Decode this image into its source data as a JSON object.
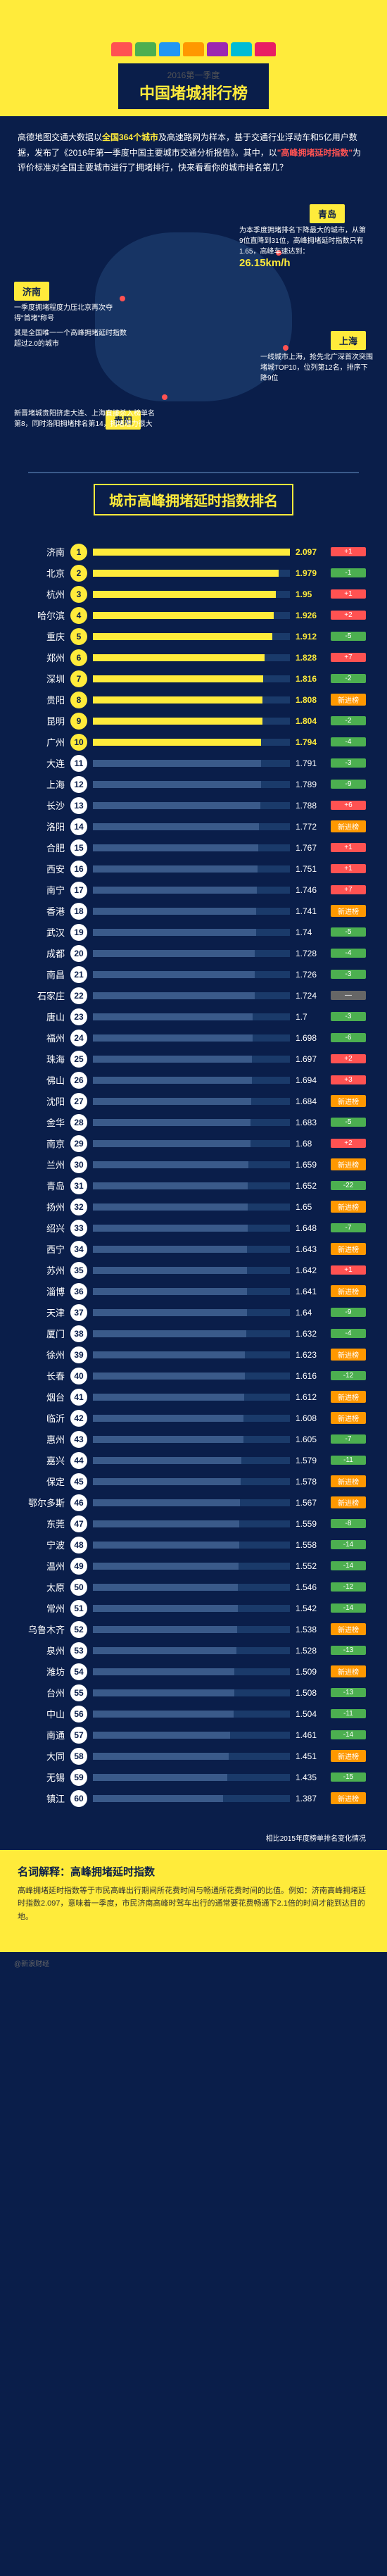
{
  "header": {
    "subtitle": "2016第一季度",
    "title": "中国堵城排行榜",
    "car_colors": [
      "#ff5252",
      "#4caf50",
      "#2196f3",
      "#ff9800",
      "#9c27b0",
      "#00bcd4",
      "#e91e63"
    ]
  },
  "intro": {
    "text_parts": [
      "高德地图交通大数据以",
      "全国364个城市",
      "及高速路网为样本，基于交通行业浮动车和5亿用户数据，发布了《2016年第一季度中国主要城市交通分析报告》。其中，以",
      "\"高峰拥堵延时指数\"",
      "为评价标准对全国主要城市进行了拥堵排行，快来看看你的城市排名第几？"
    ]
  },
  "map": {
    "qingdao": {
      "name": "青岛",
      "desc": "为本季度拥堵排名下降最大的城市，从第9位直降到31位，高峰拥堵延时指数只有1.65，高峰车速达到：",
      "speed": "26.15km/h"
    },
    "jinan": {
      "name": "济南",
      "desc1": "一季度拥堵程度力压北京再次夺得\"首堵\"称号",
      "desc2": "其是全国唯一一个高峰拥堵延时指数超过2.0的城市"
    },
    "shanghai": {
      "name": "上海",
      "desc": "一线城市上海，抢先北广深首次突围堵城TOP10，位列第12名，排序下降9位"
    },
    "guiyang": {
      "name": "贵阳",
      "desc": "新晋堵城贵阳挤走大连、上海直接杀入榜单名第8，同时洛阳拥堵排名第14，拥堵潜力很大"
    }
  },
  "ranking": {
    "title": "城市高峰拥堵延时指数排名",
    "max_value": 2.1,
    "items": [
      {
        "rank": 1,
        "city": "济南",
        "value": "2.097",
        "change": "+1",
        "type": "up"
      },
      {
        "rank": 2,
        "city": "北京",
        "value": "1.979",
        "change": "-1",
        "type": "down"
      },
      {
        "rank": 3,
        "city": "杭州",
        "value": "1.95",
        "change": "+1",
        "type": "up"
      },
      {
        "rank": 4,
        "city": "哈尔滨",
        "value": "1.926",
        "change": "+2",
        "type": "up"
      },
      {
        "rank": 5,
        "city": "重庆",
        "value": "1.912",
        "change": "-5",
        "type": "down"
      },
      {
        "rank": 6,
        "city": "郑州",
        "value": "1.828",
        "change": "+7",
        "type": "up"
      },
      {
        "rank": 7,
        "city": "深圳",
        "value": "1.816",
        "change": "-2",
        "type": "down"
      },
      {
        "rank": 8,
        "city": "贵阳",
        "value": "1.808",
        "change": "新进榜",
        "type": "new"
      },
      {
        "rank": 9,
        "city": "昆明",
        "value": "1.804",
        "change": "-2",
        "type": "down"
      },
      {
        "rank": 10,
        "city": "广州",
        "value": "1.794",
        "change": "-4",
        "type": "down"
      },
      {
        "rank": 11,
        "city": "大连",
        "value": "1.791",
        "change": "-3",
        "type": "down"
      },
      {
        "rank": 12,
        "city": "上海",
        "value": "1.789",
        "change": "-9",
        "type": "down"
      },
      {
        "rank": 13,
        "city": "长沙",
        "value": "1.788",
        "change": "+6",
        "type": "up"
      },
      {
        "rank": 14,
        "city": "洛阳",
        "value": "1.772",
        "change": "新进榜",
        "type": "new"
      },
      {
        "rank": 15,
        "city": "合肥",
        "value": "1.767",
        "change": "+1",
        "type": "up"
      },
      {
        "rank": 16,
        "city": "西安",
        "value": "1.751",
        "change": "+1",
        "type": "up"
      },
      {
        "rank": 17,
        "city": "南宁",
        "value": "1.746",
        "change": "+7",
        "type": "up"
      },
      {
        "rank": 18,
        "city": "香港",
        "value": "1.741",
        "change": "新进榜",
        "type": "new"
      },
      {
        "rank": 19,
        "city": "武汉",
        "value": "1.74",
        "change": "-5",
        "type": "down"
      },
      {
        "rank": 20,
        "city": "成都",
        "value": "1.728",
        "change": "-4",
        "type": "down"
      },
      {
        "rank": 21,
        "city": "南昌",
        "value": "1.726",
        "change": "-3",
        "type": "down"
      },
      {
        "rank": 22,
        "city": "石家庄",
        "value": "1.724",
        "change": "—",
        "type": "same"
      },
      {
        "rank": 23,
        "city": "唐山",
        "value": "1.7",
        "change": "-3",
        "type": "down"
      },
      {
        "rank": 24,
        "city": "福州",
        "value": "1.698",
        "change": "-6",
        "type": "down"
      },
      {
        "rank": 25,
        "city": "珠海",
        "value": "1.697",
        "change": "+2",
        "type": "up"
      },
      {
        "rank": 26,
        "city": "佛山",
        "value": "1.694",
        "change": "+3",
        "type": "up"
      },
      {
        "rank": 27,
        "city": "沈阳",
        "value": "1.684",
        "change": "新进榜",
        "type": "new"
      },
      {
        "rank": 28,
        "city": "金华",
        "value": "1.683",
        "change": "-5",
        "type": "down"
      },
      {
        "rank": 29,
        "city": "南京",
        "value": "1.68",
        "change": "+2",
        "type": "up"
      },
      {
        "rank": 30,
        "city": "兰州",
        "value": "1.659",
        "change": "新进榜",
        "type": "new"
      },
      {
        "rank": 31,
        "city": "青岛",
        "value": "1.652",
        "change": "-22",
        "type": "down"
      },
      {
        "rank": 32,
        "city": "扬州",
        "value": "1.65",
        "change": "新进榜",
        "type": "new"
      },
      {
        "rank": 33,
        "city": "绍兴",
        "value": "1.648",
        "change": "-7",
        "type": "down"
      },
      {
        "rank": 34,
        "city": "西宁",
        "value": "1.643",
        "change": "新进榜",
        "type": "new"
      },
      {
        "rank": 35,
        "city": "苏州",
        "value": "1.642",
        "change": "+1",
        "type": "up"
      },
      {
        "rank": 36,
        "city": "淄博",
        "value": "1.641",
        "change": "新进榜",
        "type": "new"
      },
      {
        "rank": 37,
        "city": "天津",
        "value": "1.64",
        "change": "-9",
        "type": "down"
      },
      {
        "rank": 38,
        "city": "厦门",
        "value": "1.632",
        "change": "-4",
        "type": "down"
      },
      {
        "rank": 39,
        "city": "徐州",
        "value": "1.623",
        "change": "新进榜",
        "type": "new"
      },
      {
        "rank": 40,
        "city": "长春",
        "value": "1.616",
        "change": "-12",
        "type": "down"
      },
      {
        "rank": 41,
        "city": "烟台",
        "value": "1.612",
        "change": "新进榜",
        "type": "new"
      },
      {
        "rank": 42,
        "city": "临沂",
        "value": "1.608",
        "change": "新进榜",
        "type": "new"
      },
      {
        "rank": 43,
        "city": "惠州",
        "value": "1.605",
        "change": "-7",
        "type": "down"
      },
      {
        "rank": 44,
        "city": "嘉兴",
        "value": "1.579",
        "change": "-11",
        "type": "down"
      },
      {
        "rank": 45,
        "city": "保定",
        "value": "1.578",
        "change": "新进榜",
        "type": "new"
      },
      {
        "rank": 46,
        "city": "鄂尔多斯",
        "value": "1.567",
        "change": "新进榜",
        "type": "new"
      },
      {
        "rank": 47,
        "city": "东莞",
        "value": "1.559",
        "change": "-8",
        "type": "down"
      },
      {
        "rank": 48,
        "city": "宁波",
        "value": "1.558",
        "change": "-14",
        "type": "down"
      },
      {
        "rank": 49,
        "city": "温州",
        "value": "1.552",
        "change": "-14",
        "type": "down"
      },
      {
        "rank": 50,
        "city": "太原",
        "value": "1.546",
        "change": "-12",
        "type": "down"
      },
      {
        "rank": 51,
        "city": "常州",
        "value": "1.542",
        "change": "-14",
        "type": "down"
      },
      {
        "rank": 52,
        "city": "乌鲁木齐",
        "value": "1.538",
        "change": "新进榜",
        "type": "new"
      },
      {
        "rank": 53,
        "city": "泉州",
        "value": "1.528",
        "change": "-13",
        "type": "down"
      },
      {
        "rank": 54,
        "city": "潍坊",
        "value": "1.509",
        "change": "新进榜",
        "type": "new"
      },
      {
        "rank": 55,
        "city": "台州",
        "value": "1.508",
        "change": "-13",
        "type": "down"
      },
      {
        "rank": 56,
        "city": "中山",
        "value": "1.504",
        "change": "-11",
        "type": "down"
      },
      {
        "rank": 57,
        "city": "南通",
        "value": "1.461",
        "change": "-14",
        "type": "down"
      },
      {
        "rank": 58,
        "city": "大同",
        "value": "1.451",
        "change": "新进榜",
        "type": "new"
      },
      {
        "rank": 59,
        "city": "无锡",
        "value": "1.435",
        "change": "-15",
        "type": "down"
      },
      {
        "rank": 60,
        "city": "镇江",
        "value": "1.387",
        "change": "新进榜",
        "type": "new"
      }
    ],
    "legend": "相比2015年度榜单排名变化情况"
  },
  "footer": {
    "title": "名词解释：高峰拥堵延时指数",
    "text": "高峰拥堵延时指数等于市民高峰出行期间所花费时间与畅通所花费时间的比值。例如：济南高峰拥堵延时指数2.097，意味着一季度，市民济南高峰时驾车出行的通常要花费畅通下2.1倍的时间才能到达目的地。",
    "credit": "@新浪财经"
  }
}
